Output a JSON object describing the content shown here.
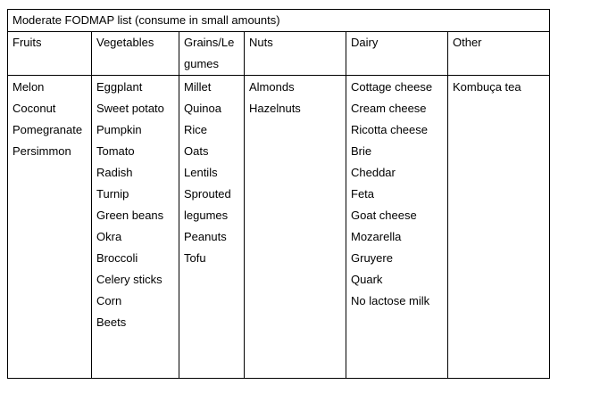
{
  "table": {
    "title": "Moderate  FODMAP list (consume in small amounts)",
    "columns": [
      {
        "key": "fruits",
        "header_lines": [
          "Fruits"
        ],
        "items": [
          "Melon",
          "Coconut",
          "Pomegranate",
          "Persimmon"
        ]
      },
      {
        "key": "vegetables",
        "header_lines": [
          "Vegetables"
        ],
        "items": [
          "Eggplant",
          "Sweet potato",
          "Pumpkin",
          "Tomato",
          "Radish",
          "Turnip",
          "Green  beans",
          "Okra",
          "Broccoli",
          "Celery sticks",
          "Corn",
          "Beets"
        ]
      },
      {
        "key": "grains-legumes",
        "header_lines": [
          "Grains/Le",
          "gumes"
        ],
        "items": [
          "Millet",
          "Quinoa",
          "Rice",
          "Oats",
          "Lentils",
          "Sprouted",
          "legumes",
          "Peanuts",
          "Tofu"
        ]
      },
      {
        "key": "nuts",
        "header_lines": [
          "Nuts"
        ],
        "items": [
          "Almonds",
          "Hazelnuts"
        ]
      },
      {
        "key": "dairy",
        "header_lines": [
          "Dairy"
        ],
        "items": [
          "Cottage cheese",
          "Cream cheese",
          "Ricotta cheese",
          "Brie",
          "Cheddar",
          "Feta",
          "Goat cheese",
          "Mozarella",
          "Gruyere",
          "Quark",
          "No lactose milk"
        ]
      },
      {
        "key": "other",
        "header_lines": [
          "Other"
        ],
        "items": [
          "Kombuça tea"
        ]
      }
    ]
  }
}
